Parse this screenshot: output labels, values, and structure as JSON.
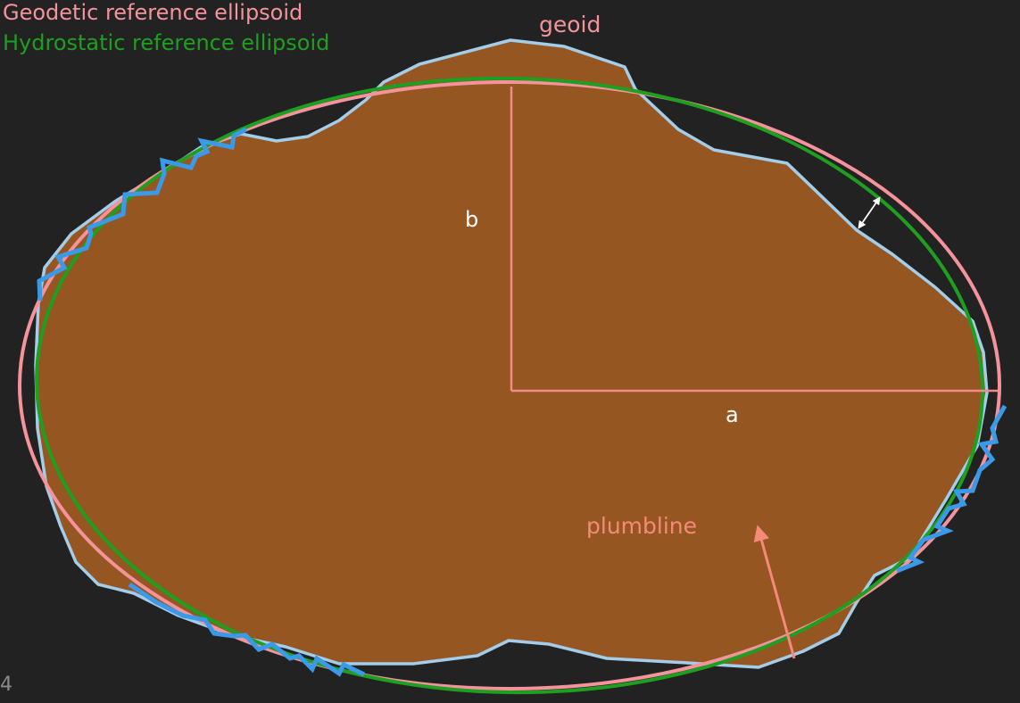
{
  "legend": {
    "geodetic_label": "Geodetic reference ellipsoid",
    "hydrostatic_label": "Hydrostatic reference ellipsoid"
  },
  "labels": {
    "geoid": "geoid",
    "b": "b",
    "a": "a",
    "plumbline": "plumbline"
  },
  "corner_number": "4",
  "colors": {
    "background": "#222222",
    "terrain_fill": "#955621",
    "geoid_outline": "#a4cdea",
    "geodetic_ellipsoid": "#f4939b",
    "hydrostatic_ellipsoid": "#1f9f20",
    "topography_zigzag": "#3a9ae8",
    "axis_lines": "#f48a8a",
    "plumbline": "#f58a7a",
    "label_white": "#ffffff",
    "label_pink": "#f4939b",
    "label_green": "#1f9f20"
  },
  "icons": {
    "separation_arrow": "double-headed-arrow-icon",
    "plumbline_arrow": "arrow-up-icon"
  }
}
